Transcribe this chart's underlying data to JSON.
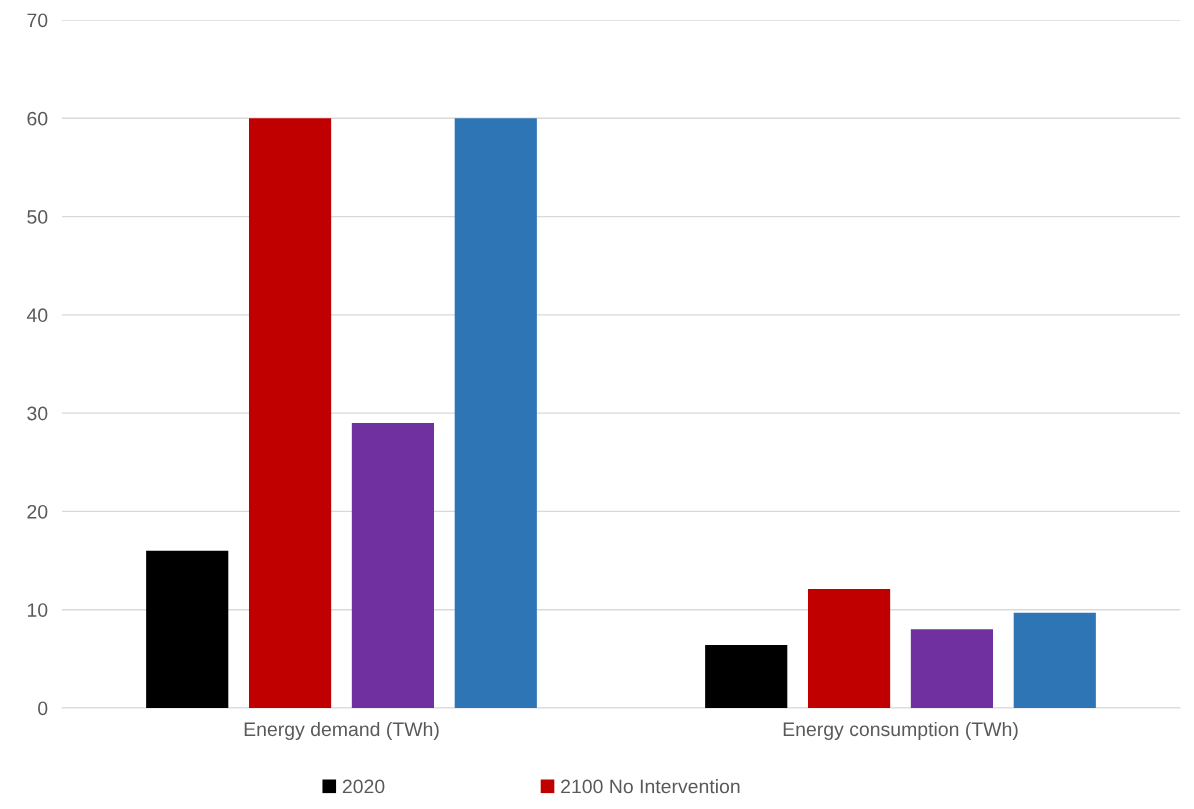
{
  "chart_data": {
    "type": "bar",
    "categories": [
      "Energy demand (TWh)",
      "Energy consumption (TWh)"
    ],
    "series": [
      {
        "name": "2020",
        "color": "#000000",
        "values": [
          16,
          6.4
        ]
      },
      {
        "name": "2100 No Intervention",
        "color": "#c00000",
        "values": [
          60,
          12.1
        ]
      },
      {
        "color": "#7030a0",
        "values": [
          29,
          8
        ]
      },
      {
        "color": "#2e75b6",
        "values": [
          60,
          9.7
        ]
      }
    ],
    "ylim": [
      0,
      70
    ],
    "yticks": [
      0,
      10,
      20,
      30,
      40,
      50,
      60,
      70
    ],
    "grid": "y",
    "legend": "bottom"
  }
}
